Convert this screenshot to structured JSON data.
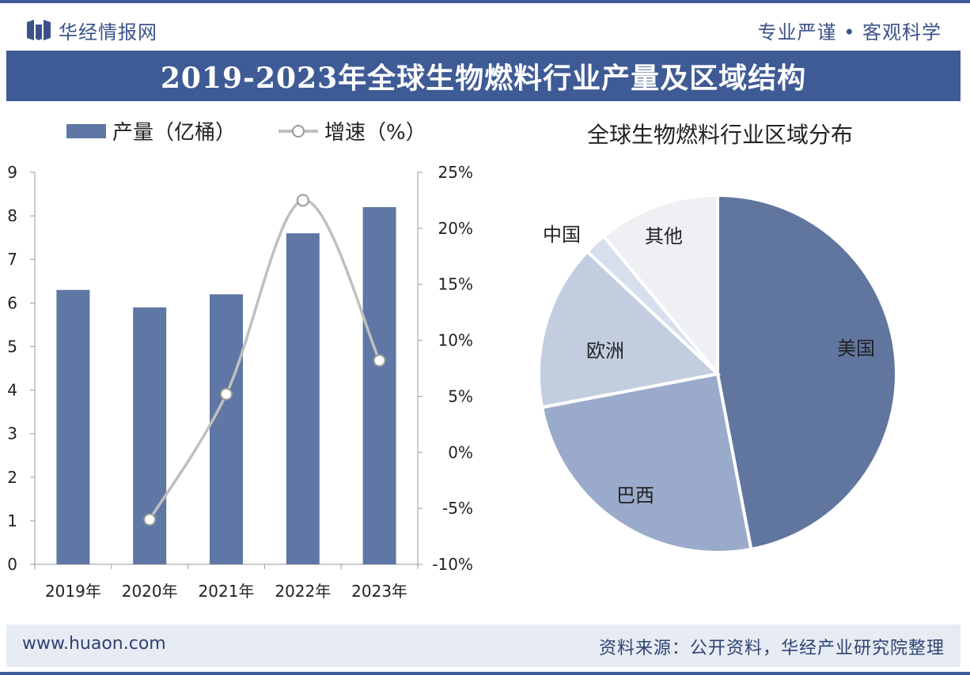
{
  "header": {
    "brand": "华经情报网",
    "slogan": "专业严谨 • 客观科学"
  },
  "title": "2019-2023年全球生物燃料行业产量及区域结构",
  "footer": {
    "url": "www.huaon.com",
    "source": "资料来源：公开资料，华经产业研究院整理"
  },
  "colors": {
    "brand_blue": "#3f5b96",
    "bar": "#5f77a5",
    "line": "#bfbfbf",
    "pie": [
      "#60769f",
      "#9aaaca",
      "#c3cde0",
      "#d8dfec",
      "#eef0f4"
    ]
  },
  "chart_data": [
    {
      "type": "bar",
      "categories": [
        "2019年",
        "2020年",
        "2021年",
        "2022年",
        "2023年"
      ],
      "series": [
        {
          "name": "产量（亿桶）",
          "type": "bar",
          "axis": "left",
          "values": [
            6.3,
            5.9,
            6.2,
            7.6,
            8.2
          ]
        },
        {
          "name": "增速（%）",
          "type": "line",
          "axis": "right",
          "values": [
            null,
            -6.0,
            5.2,
            22.5,
            8.2
          ]
        }
      ],
      "ylim": [
        0,
        9
      ],
      "yticks": [
        "0",
        "1",
        "2",
        "3",
        "4",
        "5",
        "6",
        "7",
        "8",
        "9"
      ],
      "y2lim": [
        -10,
        25
      ],
      "y2ticks": [
        "-10%",
        "-5%",
        "0%",
        "5%",
        "10%",
        "15%",
        "20%",
        "25%"
      ],
      "legend": [
        "产量（亿桶）",
        "增速（%）"
      ],
      "legend_position": "top"
    },
    {
      "type": "pie",
      "title": "全球生物燃料行业区域分布",
      "labels": [
        "美国",
        "巴西",
        "欧洲",
        "中国",
        "其他"
      ],
      "values": [
        47,
        25,
        15,
        2,
        11
      ]
    }
  ]
}
